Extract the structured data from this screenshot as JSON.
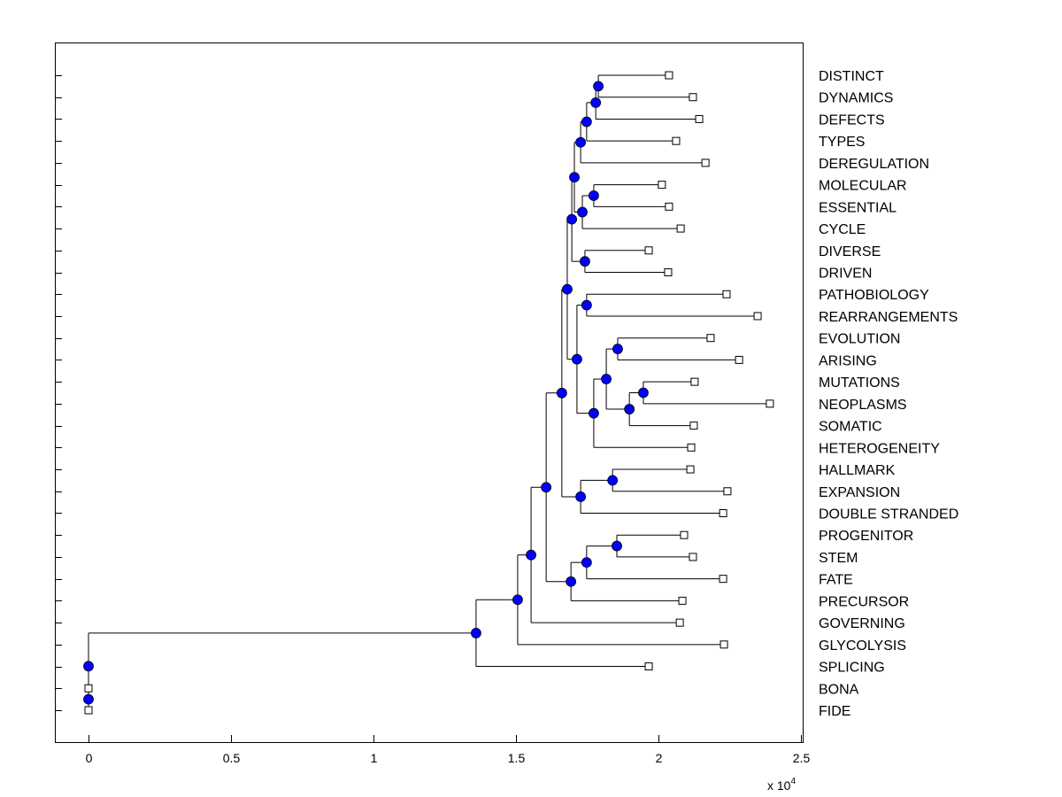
{
  "chart_data": {
    "type": "dendrogram",
    "title": "",
    "xlabel": "",
    "ylabel": "",
    "x_multiplier": "x 10",
    "x_multiplier_exponent": "4",
    "xlim": [
      -0.12,
      2.5
    ],
    "xticks": [
      0,
      0.5,
      1,
      1.5,
      2,
      2.5
    ],
    "xtick_labels": [
      "0",
      "0.5",
      "1",
      "1.5",
      "2",
      "2.5"
    ],
    "colors": {
      "branch_node": "#0000ff",
      "leaf_node": "#ffffff",
      "line": "#000000"
    },
    "leaves": [
      {
        "label": "DISTINCT",
        "x": 2.037
      },
      {
        "label": "DYNAMICS",
        "x": 2.121
      },
      {
        "label": "DEFECTS",
        "x": 2.143
      },
      {
        "label": "TYPES",
        "x": 2.062
      },
      {
        "label": "DEREGULATION",
        "x": 2.165
      },
      {
        "label": "MOLECULAR",
        "x": 2.012
      },
      {
        "label": "ESSENTIAL",
        "x": 2.037
      },
      {
        "label": "CYCLE",
        "x": 2.078
      },
      {
        "label": "DIVERSE",
        "x": 1.966
      },
      {
        "label": "DRIVEN",
        "x": 2.034
      },
      {
        "label": "PATHOBIOLOGY",
        "x": 2.239
      },
      {
        "label": "REARRANGEMENTS",
        "x": 2.348
      },
      {
        "label": "EVOLUTION",
        "x": 2.183
      },
      {
        "label": "ARISING",
        "x": 2.283
      },
      {
        "label": "MUTATIONS",
        "x": 2.127
      },
      {
        "label": "NEOPLASMS",
        "x": 2.391
      },
      {
        "label": "SOMATIC",
        "x": 2.124
      },
      {
        "label": "HETEROGENEITY",
        "x": 2.115
      },
      {
        "label": "HALLMARK",
        "x": 2.112
      },
      {
        "label": "EXPANSION",
        "x": 2.242
      },
      {
        "label": "DOUBLE STRANDED",
        "x": 2.227
      },
      {
        "label": "PROGENITOR",
        "x": 2.09
      },
      {
        "label": "STEM",
        "x": 2.121
      },
      {
        "label": "FATE",
        "x": 2.227
      },
      {
        "label": "PRECURSOR",
        "x": 2.084
      },
      {
        "label": "GOVERNING",
        "x": 2.075
      },
      {
        "label": "GLYCOLYSIS",
        "x": 2.23
      },
      {
        "label": "SPLICING",
        "x": 1.966
      },
      {
        "label": "BONA",
        "x": 0
      },
      {
        "label": "FIDE",
        "x": 0
      }
    ],
    "branches": [
      {
        "id": "b1",
        "x": 1.789,
        "children": [
          "L0",
          "L1"
        ]
      },
      {
        "id": "b2",
        "x": 1.78,
        "children": [
          "b1",
          "L2"
        ]
      },
      {
        "id": "b3",
        "x": 1.748,
        "children": [
          "b2",
          "L3"
        ]
      },
      {
        "id": "b4",
        "x": 1.727,
        "children": [
          "b3",
          "L4"
        ]
      },
      {
        "id": "b5",
        "x": 1.773,
        "children": [
          "L5",
          "L6"
        ]
      },
      {
        "id": "b6",
        "x": 1.733,
        "children": [
          "b5",
          "L7"
        ]
      },
      {
        "id": "b7",
        "x": 1.705,
        "children": [
          "b4",
          "b6"
        ]
      },
      {
        "id": "b8",
        "x": 1.742,
        "children": [
          "L8",
          "L9"
        ]
      },
      {
        "id": "b9",
        "x": 1.696,
        "children": [
          "b7",
          "b8"
        ]
      },
      {
        "id": "b10",
        "x": 1.748,
        "children": [
          "L10",
          "L11"
        ]
      },
      {
        "id": "b11",
        "x": 1.857,
        "children": [
          "L12",
          "L13"
        ]
      },
      {
        "id": "b12",
        "x": 1.947,
        "children": [
          "L14",
          "L15"
        ]
      },
      {
        "id": "b13",
        "x": 1.898,
        "children": [
          "b12",
          "L16"
        ]
      },
      {
        "id": "b14",
        "x": 1.817,
        "children": [
          "b11",
          "b13"
        ]
      },
      {
        "id": "b15",
        "x": 1.773,
        "children": [
          "b14",
          "L17"
        ]
      },
      {
        "id": "b16",
        "x": 1.714,
        "children": [
          "b10",
          "b15"
        ]
      },
      {
        "id": "b17",
        "x": 1.68,
        "children": [
          "b9",
          "b16"
        ]
      },
      {
        "id": "b18",
        "x": 1.839,
        "children": [
          "L18",
          "L19"
        ]
      },
      {
        "id": "b19",
        "x": 1.727,
        "children": [
          "b18",
          "L20"
        ]
      },
      {
        "id": "b20",
        "x": 1.661,
        "children": [
          "b17",
          "b19"
        ]
      },
      {
        "id": "b21",
        "x": 1.854,
        "children": [
          "L21",
          "L22"
        ]
      },
      {
        "id": "b22",
        "x": 1.748,
        "children": [
          "b21",
          "L23"
        ]
      },
      {
        "id": "b23",
        "x": 1.693,
        "children": [
          "b22",
          "L24"
        ]
      },
      {
        "id": "b24",
        "x": 1.606,
        "children": [
          "b20",
          "b23"
        ]
      },
      {
        "id": "b25",
        "x": 1.553,
        "children": [
          "b24",
          "L25"
        ]
      },
      {
        "id": "b26",
        "x": 1.506,
        "children": [
          "b25",
          "L26"
        ]
      },
      {
        "id": "b27",
        "x": 1.36,
        "children": [
          "b26",
          "L27"
        ]
      },
      {
        "id": "b28",
        "x": 0,
        "children": [
          "L28",
          "L29"
        ]
      },
      {
        "id": "b29",
        "x": 0,
        "children": [
          "b27",
          "b28"
        ]
      }
    ]
  }
}
